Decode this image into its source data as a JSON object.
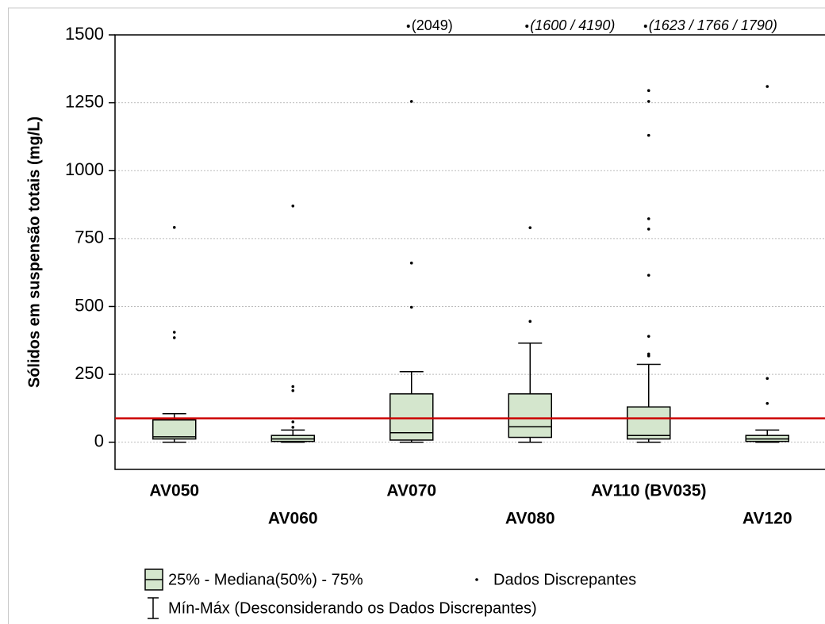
{
  "chart_data": {
    "type": "box",
    "y_label": "Sólidos em suspensão totais (mg/L)",
    "ylim": [
      -100,
      1500
    ],
    "yticks": [
      0,
      250,
      500,
      750,
      1000,
      1250,
      1500
    ],
    "grid": true,
    "box_color": "#d4e6cd",
    "reference_line": 88,
    "reference_color": "#cc0000",
    "boxes": [
      {
        "category": "AV050",
        "min": 0,
        "q1": 12,
        "median": 20,
        "q3": 82,
        "max": 105,
        "outliers": [
          791,
          405,
          385
        ]
      },
      {
        "category": "AV060",
        "min": 0,
        "q1": 3,
        "median": 12,
        "q3": 25,
        "max": 45,
        "outliers": [
          870,
          205,
          190,
          75,
          55
        ]
      },
      {
        "category": "AV070",
        "min": 0,
        "q1": 8,
        "median": 35,
        "q3": 178,
        "max": 260,
        "outliers": [
          1255,
          660,
          497
        ],
        "off_scale_label": "(2049)",
        "off_scale_italic": false
      },
      {
        "category": "AV080",
        "min": 0,
        "q1": 18,
        "median": 57,
        "q3": 178,
        "max": 365,
        "outliers": [
          790,
          445
        ],
        "off_scale_label": "(1600 / 4190)",
        "off_scale_italic": true
      },
      {
        "category": "AV110 (BV035)",
        "min": 0,
        "q1": 12,
        "median": 25,
        "q3": 130,
        "max": 287,
        "outliers": [
          1295,
          1255,
          1130,
          823,
          785,
          615,
          390,
          325,
          318
        ],
        "off_scale_label": "(1623 / 1766 / 1790)",
        "off_scale_italic": true
      },
      {
        "category": "AV120",
        "min": 0,
        "q1": 3,
        "median": 12,
        "q3": 25,
        "max": 45,
        "outliers": [
          1310,
          235,
          143
        ]
      }
    ],
    "legend": {
      "box": "25% - Mediana(50%) - 75%",
      "outlier": "Dados Discrepantes",
      "whisker": "Mín-Máx (Desconsiderando os Dados Discrepantes)"
    }
  }
}
